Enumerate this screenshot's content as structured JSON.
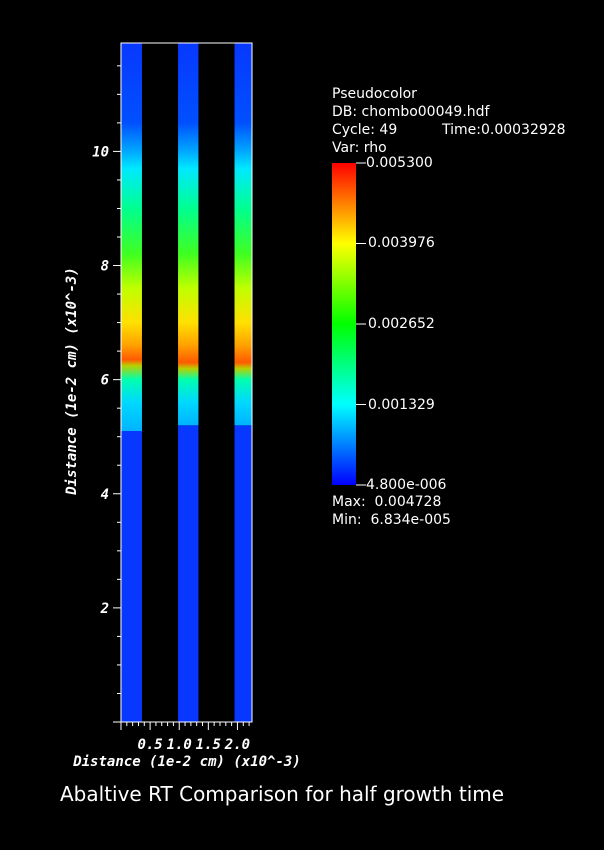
{
  "chart_data": {
    "type": "heatmap",
    "footer_title": "Abaltive RT Comparison for half growth time",
    "xlabel": "Distance (1e-2 cm) (x10^-3)",
    "ylabel": "Distance (1e-2 cm) (x10^-3)",
    "xlim": [
      0,
      2.25
    ],
    "ylim": [
      0,
      11.9
    ],
    "x_ticks": [
      {
        "value": 0.5,
        "label": "0.5"
      },
      {
        "value": 1.0,
        "label": "1.0"
      },
      {
        "value": 1.5,
        "label": "1.5"
      },
      {
        "value": 2.0,
        "label": "2.0"
      }
    ],
    "y_ticks": [
      {
        "value": 2,
        "label": "2"
      },
      {
        "value": 4,
        "label": "4"
      },
      {
        "value": 6,
        "label": "6"
      },
      {
        "value": 8,
        "label": "8"
      },
      {
        "value": 10,
        "label": "10"
      }
    ],
    "columns": [
      {
        "x0": 0.0,
        "x1": 0.36,
        "interface_y": 5.1,
        "front_y": 6.35
      },
      {
        "x0": 0.98,
        "x1": 1.33,
        "interface_y": 5.2,
        "front_y": 6.3
      },
      {
        "x0": 1.95,
        "x1": 2.3,
        "interface_y": 5.2,
        "front_y": 6.3
      }
    ],
    "legend": {
      "plot_type": "Pseudocolor",
      "db": "DB: chombo00049.hdf",
      "cycle": "Cycle: 49",
      "time": "Time:0.00032928",
      "var": "Var: rho",
      "colorbar_labels": [
        "0.005300",
        "0.003976",
        "0.002652",
        "0.001329",
        "4.800e-006"
      ],
      "colorbar_values": [
        0.0053,
        0.003976,
        0.002652,
        0.001329,
        4.8e-06
      ],
      "colormap": [
        "#0000ff",
        "#00ffff",
        "#00ff00",
        "#ffff00",
        "#ff0000"
      ],
      "max": "Max:  0.004728",
      "min": "Min:  6.834e-005"
    }
  }
}
